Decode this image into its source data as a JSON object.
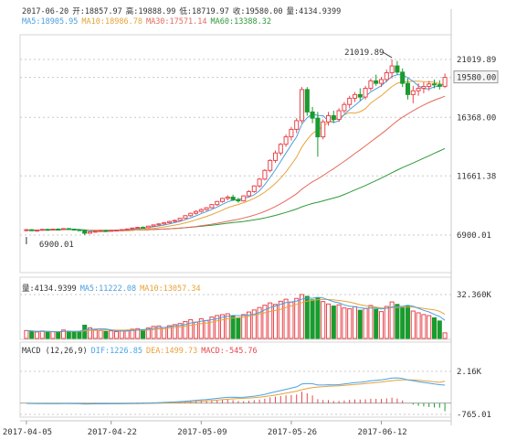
{
  "header": {
    "date": "2017-06-20",
    "open_label": "开:",
    "open": "18857.97",
    "high_label": "高:",
    "high": "19888.99",
    "low_label": "低:",
    "low": "18719.97",
    "close_label": "收:",
    "close": "19580.00",
    "vol_label": "量:",
    "vol": "4134.9399"
  },
  "ma_legend": {
    "ma5": "MA5:18905.95",
    "ma10": "MA10:18986.78",
    "ma30": "MA30:17571.14",
    "ma60": "MA60:13388.32"
  },
  "vol_legend": {
    "vol": "量:4134.9399",
    "ma5": "MA5:11222.08",
    "ma10": "MA10:13057.34"
  },
  "macd_legend": {
    "title": "MACD (12,26,9)",
    "dif": "DIF:1226.85",
    "dea": "DEA:1499.73",
    "macd": "MACD:-545.76"
  },
  "colors": {
    "up": "#e8474d",
    "down": "#1a9b2e",
    "ma5": "#4a9fe0",
    "ma10": "#e8a23a",
    "ma30": "#e66a5a",
    "ma60": "#2e9a3a",
    "dif": "#4aa3e8",
    "dea": "#e8a23a"
  },
  "chart_data": [
    {
      "type": "candlestick",
      "title": "",
      "x_ticks": [
        "2017-04-05",
        "2017-04-22",
        "2017-05-09",
        "2017-05-26",
        "2017-06-12"
      ],
      "y_ticks": [
        "21019.89",
        "19580.00",
        "16368.00",
        "11661.38",
        "6900.01"
      ],
      "ylim": [
        6900.01,
        21019.89
      ],
      "annotations": [
        {
          "label": "21019.89",
          "value": 21019.89,
          "note": "max"
        },
        {
          "label": "6900.01",
          "value": 6900.01,
          "note": "min"
        }
      ],
      "last_price_label": "19580.00",
      "candles": [
        [
          7310,
          7390,
          7200,
          7330
        ],
        [
          7330,
          7380,
          7230,
          7250
        ],
        [
          7250,
          7320,
          7180,
          7300
        ],
        [
          7300,
          7400,
          7260,
          7360
        ],
        [
          7360,
          7420,
          7300,
          7330
        ],
        [
          7330,
          7400,
          7290,
          7380
        ],
        [
          7380,
          7440,
          7320,
          7350
        ],
        [
          7350,
          7460,
          7300,
          7420
        ],
        [
          7420,
          7470,
          7360,
          7380
        ],
        [
          7380,
          7420,
          7300,
          7330
        ],
        [
          7330,
          7380,
          7250,
          7290
        ],
        [
          7290,
          7340,
          6900,
          7050
        ],
        [
          7050,
          7200,
          7000,
          7160
        ],
        [
          7160,
          7250,
          7100,
          7210
        ],
        [
          7210,
          7300,
          7150,
          7260
        ],
        [
          7260,
          7320,
          7190,
          7240
        ],
        [
          7240,
          7310,
          7200,
          7280
        ],
        [
          7280,
          7350,
          7220,
          7300
        ],
        [
          7300,
          7380,
          7260,
          7340
        ],
        [
          7340,
          7420,
          7290,
          7390
        ],
        [
          7390,
          7500,
          7350,
          7470
        ],
        [
          7470,
          7560,
          7420,
          7520
        ],
        [
          7520,
          7600,
          7450,
          7500
        ],
        [
          7500,
          7650,
          7470,
          7620
        ],
        [
          7620,
          7750,
          7580,
          7720
        ],
        [
          7720,
          7850,
          7680,
          7800
        ],
        [
          7800,
          7960,
          7760,
          7900
        ],
        [
          7900,
          8050,
          7850,
          8000
        ],
        [
          8000,
          8150,
          7950,
          8080
        ],
        [
          8080,
          8300,
          8020,
          8250
        ],
        [
          8250,
          8500,
          8200,
          8460
        ],
        [
          8460,
          8700,
          8380,
          8650
        ],
        [
          8650,
          8900,
          8550,
          8800
        ],
        [
          8800,
          9050,
          8700,
          8950
        ],
        [
          8950,
          9150,
          8850,
          9100
        ],
        [
          9100,
          9400,
          9050,
          9350
        ],
        [
          9350,
          9650,
          9250,
          9600
        ],
        [
          9600,
          9900,
          9500,
          9850
        ],
        [
          9850,
          10100,
          9700,
          9950
        ],
        [
          9950,
          10150,
          9650,
          9750
        ],
        [
          9750,
          9900,
          9500,
          9650
        ],
        [
          9650,
          10100,
          9600,
          10050
        ],
        [
          10050,
          10500,
          9950,
          10400
        ],
        [
          10400,
          10900,
          10300,
          10850
        ],
        [
          10850,
          11500,
          10700,
          11400
        ],
        [
          11400,
          12200,
          11300,
          12100
        ],
        [
          12100,
          13000,
          11950,
          12900
        ],
        [
          12900,
          13700,
          12700,
          13500
        ],
        [
          13500,
          14300,
          13300,
          14200
        ],
        [
          14200,
          15000,
          14000,
          14800
        ],
        [
          14800,
          15600,
          14500,
          15400
        ],
        [
          15400,
          16300,
          15100,
          16100
        ],
        [
          16100,
          18800,
          15900,
          18600
        ],
        [
          18600,
          18800,
          16500,
          16800
        ],
        [
          16800,
          17200,
          15900,
          16300
        ],
        [
          16300,
          16800,
          13200,
          14800
        ],
        [
          14800,
          16200,
          14600,
          16000
        ],
        [
          16000,
          16800,
          15700,
          16500
        ],
        [
          16500,
          16900,
          15900,
          16200
        ],
        [
          16200,
          17100,
          16000,
          16900
        ],
        [
          16900,
          17600,
          16700,
          17400
        ],
        [
          17400,
          18100,
          17100,
          17900
        ],
        [
          17900,
          18400,
          17600,
          18200
        ],
        [
          18200,
          18700,
          17700,
          18000
        ],
        [
          18000,
          18900,
          17800,
          18700
        ],
        [
          18700,
          19500,
          18500,
          19300
        ],
        [
          19300,
          19800,
          18900,
          19100
        ],
        [
          19100,
          19600,
          18800,
          19400
        ],
        [
          19400,
          20200,
          19200,
          19950
        ],
        [
          19950,
          21019.89,
          19500,
          20500
        ],
        [
          20500,
          20900,
          19800,
          20000
        ],
        [
          20000,
          20300,
          18800,
          19100
        ],
        [
          19100,
          19500,
          17800,
          18200
        ],
        [
          18200,
          18900,
          17500,
          18500
        ],
        [
          18500,
          19100,
          18100,
          18700
        ],
        [
          18700,
          19200,
          18300,
          18850
        ],
        [
          18850,
          19300,
          18500,
          19050
        ],
        [
          19050,
          19400,
          18700,
          18980
        ],
        [
          18980,
          19350,
          18600,
          18860
        ],
        [
          18857.97,
          19888.99,
          18719.97,
          19580.0
        ]
      ]
    },
    {
      "type": "bar",
      "title": "",
      "y_ticks": [
        "32.360K"
      ],
      "volume_max": 32360,
      "volumes": [
        5800,
        5200,
        4800,
        5500,
        4600,
        5000,
        4700,
        6200,
        5400,
        4900,
        5300,
        9800,
        7800,
        6500,
        5900,
        5200,
        5600,
        5100,
        5500,
        6000,
        6800,
        7200,
        6500,
        7700,
        8900,
        9200,
        8100,
        9400,
        10200,
        11000,
        12500,
        13800,
        12000,
        14500,
        13200,
        15800,
        16900,
        17500,
        18200,
        16400,
        14800,
        17600,
        19500,
        21000,
        22800,
        24500,
        26200,
        25100,
        27400,
        28900,
        26800,
        29500,
        32360,
        31000,
        28500,
        30100,
        27200,
        25400,
        23900,
        24800,
        22500,
        21900,
        23400,
        20800,
        22100,
        24300,
        21500,
        19800,
        23600,
        26900,
        25100,
        22800,
        24100,
        20200,
        18900,
        17600,
        16800,
        15200,
        12900,
        4134.94
      ],
      "ma5_label": "MA5",
      "ma10_label": "MA10"
    },
    {
      "type": "line",
      "title": "",
      "y_ticks": [
        "2.16K",
        "-765.01"
      ],
      "ylim": [
        -765.01,
        2160
      ],
      "dif": [
        -20,
        -25,
        -30,
        -28,
        -30,
        -29,
        -30,
        -26,
        -27,
        -30,
        -35,
        -60,
        -55,
        -50,
        -44,
        -42,
        -38,
        -35,
        -31,
        -26,
        -18,
        -10,
        -6,
        4,
        18,
        32,
        50,
        66,
        82,
        104,
        134,
        162,
        195,
        225,
        252,
        286,
        322,
        362,
        392,
        398,
        390,
        400,
        430,
        476,
        530,
        600,
        690,
        770,
        850,
        940,
        1020,
        1110,
        1300,
        1330,
        1320,
        1230,
        1230,
        1250,
        1240,
        1260,
        1300,
        1350,
        1395,
        1420,
        1460,
        1520,
        1550,
        1580,
        1640,
        1710,
        1720,
        1680,
        1580,
        1520,
        1460,
        1410,
        1360,
        1310,
        1260,
        1226.85
      ],
      "dea": [
        -15,
        -17,
        -19,
        -21,
        -22,
        -24,
        -25,
        -25,
        -25,
        -26,
        -28,
        -34,
        -38,
        -40,
        -41,
        -41,
        -41,
        -40,
        -38,
        -36,
        -32,
        -28,
        -23,
        -18,
        -10,
        0,
        10,
        21,
        33,
        47,
        64,
        83,
        106,
        130,
        154,
        181,
        208,
        239,
        270,
        296,
        315,
        332,
        351,
        376,
        407,
        446,
        495,
        550,
        610,
        676,
        745,
        817,
        913,
        996,
        1060,
        1094,
        1121,
        1147,
        1166,
        1185,
        1208,
        1236,
        1268,
        1298,
        1330,
        1368,
        1404,
        1439,
        1479,
        1525,
        1563,
        1587,
        1586,
        1573,
        1551,
        1522,
        1490,
        1454,
        1415,
        1499.73
      ],
      "macd": [
        -10,
        -16,
        -22,
        -14,
        -16,
        -10,
        -10,
        -2,
        -4,
        -8,
        -14,
        -52,
        -34,
        -20,
        -6,
        -2,
        6,
        10,
        14,
        20,
        28,
        36,
        34,
        44,
        56,
        64,
        80,
        90,
        98,
        114,
        140,
        158,
        178,
        190,
        196,
        210,
        228,
        246,
        244,
        204,
        150,
        136,
        158,
        200,
        246,
        308,
        390,
        440,
        480,
        528,
        550,
        586,
        774,
        668,
        520,
        272,
        218,
        206,
        148,
        150,
        184,
        228,
        254,
        244,
        260,
        304,
        292,
        282,
        322,
        370,
        314,
        186,
        -12,
        -106,
        -182,
        -224,
        -260,
        -288,
        -310,
        -545.76
      ]
    }
  ]
}
